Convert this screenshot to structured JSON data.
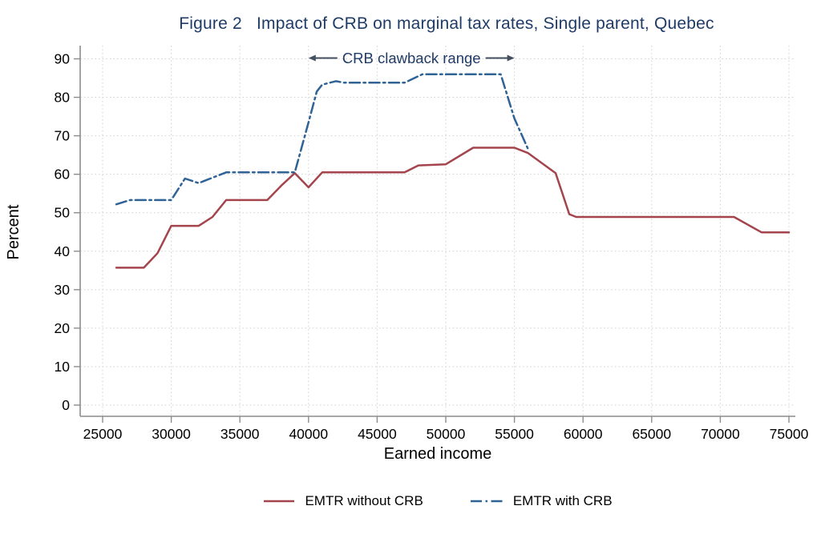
{
  "figure": {
    "background": "#ffffff"
  },
  "chart_data": {
    "type": "line",
    "title": "Figure 2   Impact of CRB on marginal tax rates, Single parent, Quebec",
    "title_color": "#1F3B67",
    "xlabel": "Earned income",
    "ylabel": "Percent",
    "xlim": [
      25000,
      75000
    ],
    "ylim": [
      0,
      90
    ],
    "x_ticks": [
      25000,
      30000,
      35000,
      40000,
      45000,
      50000,
      55000,
      60000,
      65000,
      70000,
      75000
    ],
    "y_ticks": [
      0,
      10,
      20,
      30,
      40,
      50,
      60,
      70,
      80,
      90
    ],
    "grid": "dotted both directions",
    "grid_color": "#d2d2d2",
    "axis_color": "#8c8c8c",
    "legend_position": "bottom center",
    "annotation": {
      "label": "CRB clawback range",
      "x_start": 40000,
      "x_end": 55000,
      "y": 90.2,
      "text_color": "#1F3B67",
      "arrow_color": "#44505F"
    },
    "series": [
      {
        "name": "EMTR without CRB",
        "color": "#A4454D",
        "style": "solid",
        "points": [
          [
            26000,
            35.7
          ],
          [
            28000,
            35.7
          ],
          [
            29000,
            39.5
          ],
          [
            30000,
            46.6
          ],
          [
            32000,
            46.6
          ],
          [
            33000,
            48.9
          ],
          [
            34000,
            53.3
          ],
          [
            37000,
            53.3
          ],
          [
            38000,
            57.0
          ],
          [
            39000,
            60.3
          ],
          [
            40000,
            56.6
          ],
          [
            41000,
            60.5
          ],
          [
            47000,
            60.5
          ],
          [
            48000,
            62.3
          ],
          [
            50000,
            62.6
          ],
          [
            52000,
            66.9
          ],
          [
            55000,
            66.9
          ],
          [
            56000,
            65.5
          ],
          [
            58000,
            60.3
          ],
          [
            59000,
            49.6
          ],
          [
            59500,
            48.9
          ],
          [
            71000,
            48.9
          ],
          [
            73000,
            44.9
          ],
          [
            75000,
            44.9
          ]
        ]
      },
      {
        "name": "EMTR with CRB",
        "color": "#2F6395",
        "style": "dash-dot",
        "points": [
          [
            26000,
            52.2
          ],
          [
            27000,
            53.3
          ],
          [
            30000,
            53.3
          ],
          [
            31000,
            58.9
          ],
          [
            32000,
            57.7
          ],
          [
            34000,
            60.5
          ],
          [
            39000,
            60.5
          ],
          [
            40000,
            73.5
          ],
          [
            40600,
            81.5
          ],
          [
            41000,
            83.3
          ],
          [
            42000,
            84.2
          ],
          [
            42600,
            83.8
          ],
          [
            47000,
            83.8
          ],
          [
            48300,
            86.0
          ],
          [
            54000,
            86.0
          ],
          [
            55000,
            74.5
          ],
          [
            56000,
            66.5
          ]
        ]
      }
    ]
  }
}
